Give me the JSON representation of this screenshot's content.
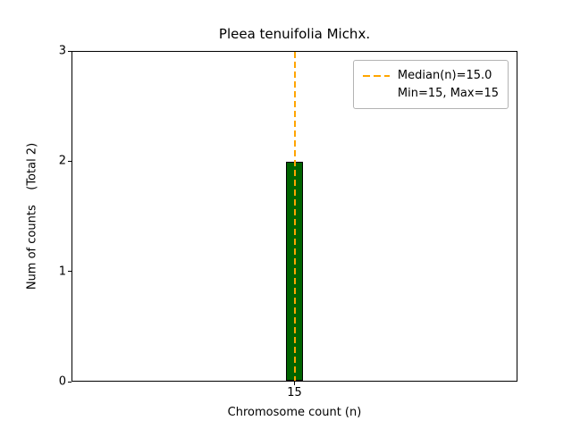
{
  "figure": {
    "title": "Pleea tenuifolia Michx.",
    "xlabel": "Chromosome count (n)",
    "ylabel": "Num of counts    (Total 2)",
    "x_tick_labels": [
      "15"
    ],
    "y_tick_labels": [
      "0",
      "1",
      "2",
      "3"
    ],
    "legend_items": [
      {
        "label": "Median(n)=15.0",
        "swatch": "orange-dashed-line"
      },
      {
        "label": "Min=15, Max=15",
        "swatch": "none"
      }
    ],
    "colors": {
      "bar_fill": "#006400",
      "bar_edge": "#000000",
      "median_line": "#FFA500",
      "legend_border": "#b3b3b3",
      "axis": "#000000"
    }
  },
  "chart_data": {
    "type": "bar",
    "title": "Pleea tenuifolia Michx.",
    "xlabel": "Chromosome count (n)",
    "ylabel": "Num of counts (Total 2)",
    "categories": [
      15
    ],
    "values": [
      2
    ],
    "total_counts": 2,
    "ylim": [
      0,
      3
    ],
    "yticks": [
      0,
      1,
      2,
      3
    ],
    "median": 15.0,
    "min": 15,
    "max": 15,
    "grid": false,
    "legend_position": "upper right",
    "legend": [
      "Median(n)=15.0",
      "Min=15, Max=15"
    ],
    "bar_color_hex": "#006400",
    "median_line_color_hex": "#FFA500"
  }
}
